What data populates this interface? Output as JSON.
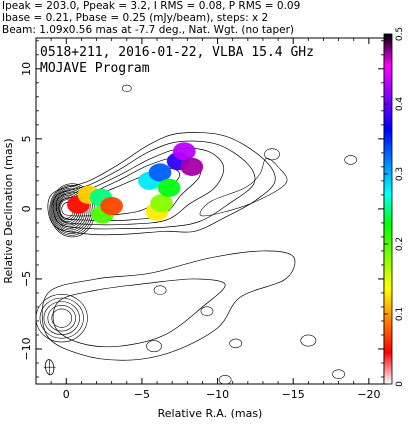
{
  "header": {
    "line1": "Ipeak = 203.0, Ppeak = 3.2, I RMS = 0.08, P RMS = 0.09",
    "line2": "Ibase = 0.21, Pbase = 0.25 (mJy/beam), steps: x 2",
    "line3": "Beam: 1.09x0.56 mas at -7.7 deg., Nat. Wgt. (no taper)"
  },
  "chart_data": {
    "type": "heatmap",
    "title": "0518+211, 2016-01-22, VLBA 15.4 GHz",
    "subtitle": "MOJAVE Program",
    "xlabel": "Relative R.A. (mas)",
    "ylabel": "Relative Declination (mas)",
    "xlim": [
      2,
      -21
    ],
    "ylim": [
      -12.5,
      12.2
    ],
    "xticks": [
      0,
      -5,
      -10,
      -15,
      -20
    ],
    "xtick_labels": [
      "0",
      "−5",
      "−10",
      "−15",
      "−20"
    ],
    "yticks": [
      -10,
      -5,
      0,
      5,
      10
    ],
    "ytick_labels": [
      "−10",
      "−5",
      "0",
      "5",
      "10"
    ],
    "colorbar": {
      "min": 0,
      "max": 0.5,
      "ticks": [
        0,
        0.1,
        0.2,
        0.3,
        0.4,
        0.5
      ],
      "tick_labels": [
        "0",
        "0.1",
        "0.2",
        "0.3",
        "0.4",
        "0.5"
      ],
      "colors": [
        "#ffffff",
        "#ff0000",
        "#ff8000",
        "#ffff00",
        "#80ff00",
        "#00ff00",
        "#00ffff",
        "#0080ff",
        "#0000ff",
        "#8000ff",
        "#ff00ff",
        "#000000"
      ]
    },
    "total_intensity_contours": {
      "center": [
        0,
        0
      ],
      "levels_count": 12,
      "jet_direction": "west-northwest"
    },
    "polarization_blobs": [
      {
        "x": -0.8,
        "y": 0.3,
        "value": 0.05
      },
      {
        "x": -1.5,
        "y": 1.0,
        "value": 0.12
      },
      {
        "x": -2.3,
        "y": 0.8,
        "value": 0.25
      },
      {
        "x": -2.4,
        "y": -0.4,
        "value": 0.2
      },
      {
        "x": -3.0,
        "y": 0.2,
        "value": 0.07
      },
      {
        "x": -6.0,
        "y": -0.2,
        "value": 0.13
      },
      {
        "x": -6.3,
        "y": 0.4,
        "value": 0.18
      },
      {
        "x": -5.5,
        "y": 2.0,
        "value": 0.28
      },
      {
        "x": -6.2,
        "y": 2.6,
        "value": 0.33
      },
      {
        "x": -7.4,
        "y": 3.4,
        "value": 0.38
      },
      {
        "x": -7.8,
        "y": 4.1,
        "value": 0.43
      },
      {
        "x": -8.3,
        "y": 3.0,
        "value": 0.47
      },
      {
        "x": -6.8,
        "y": 1.5,
        "value": 0.23
      }
    ],
    "polarized_contours": {
      "center": [
        0,
        -7.8
      ],
      "levels_count": 5
    },
    "beam": {
      "major": 1.09,
      "minor": 0.56,
      "pa": -7.7
    }
  }
}
